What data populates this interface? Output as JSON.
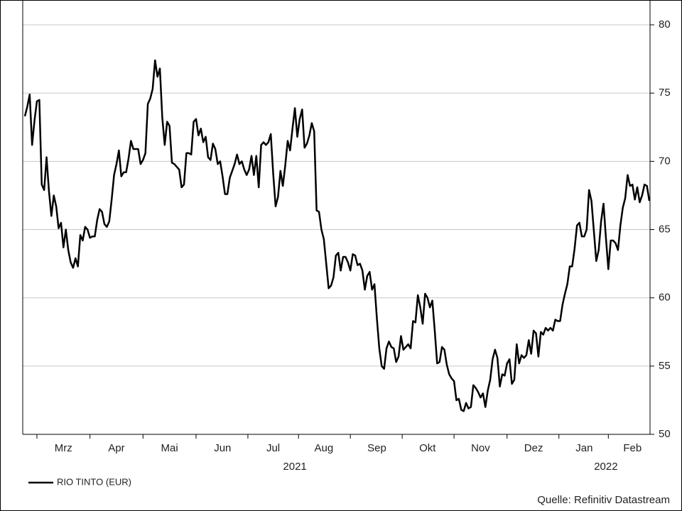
{
  "chart_data": {
    "type": "line",
    "categories": [
      null,
      null,
      null,
      null,
      null,
      null,
      null,
      null,
      null,
      null,
      null,
      null,
      null,
      null,
      null,
      null,
      "Mrz",
      null,
      null,
      null,
      null,
      null,
      null,
      null,
      null,
      null,
      null,
      null,
      null,
      null,
      null,
      null,
      null,
      null,
      null,
      null,
      null,
      null,
      "Apr",
      null,
      null,
      null,
      null,
      null,
      null,
      null,
      null,
      null,
      null,
      null,
      null,
      null,
      null,
      null,
      null,
      null,
      null,
      null,
      null,
      null,
      "Mai",
      null,
      null,
      null,
      null,
      null,
      null,
      null,
      null,
      null,
      null,
      null,
      null,
      null,
      null,
      null,
      null,
      null,
      null,
      null,
      null,
      null,
      "Jun",
      null,
      null,
      null,
      null,
      null,
      null,
      null,
      null,
      null,
      null,
      null,
      null,
      null,
      null,
      null,
      null,
      null,
      null,
      null,
      null,
      "Jul",
      null,
      null,
      null,
      null,
      null,
      null,
      null,
      null,
      null,
      null,
      null,
      null,
      null,
      null,
      null,
      null,
      null,
      null,
      null,
      null,
      "Aug",
      null,
      null,
      null,
      null,
      null,
      null,
      null,
      null,
      null,
      null,
      null,
      null,
      null,
      null,
      null,
      null,
      null,
      null,
      null,
      null,
      null,
      "Sep",
      null,
      null,
      null,
      null,
      null,
      null,
      null,
      null,
      null,
      null,
      null,
      null,
      null,
      null,
      null,
      null,
      null,
      null,
      null,
      null,
      "Okt",
      null,
      null,
      null,
      null,
      null,
      null,
      null,
      null,
      null,
      null,
      null,
      null,
      null,
      null,
      null,
      null,
      null,
      null,
      null,
      null,
      null,
      "Nov",
      null,
      null,
      null,
      null,
      null,
      null,
      null,
      null,
      null,
      null,
      null,
      null,
      null,
      null,
      null,
      null,
      null,
      null,
      null,
      null,
      null,
      "Dez",
      null,
      null,
      null,
      null,
      null,
      null,
      null,
      null,
      null,
      null,
      null,
      null,
      null,
      null,
      null,
      null,
      null,
      null,
      null,
      null,
      "Jan",
      null,
      null,
      null,
      null,
      null,
      null,
      null,
      null,
      null,
      null,
      null,
      null,
      null,
      null,
      null,
      null,
      null,
      null,
      null,
      "Feb",
      null,
      null,
      null,
      null,
      null,
      null,
      null
    ],
    "years": [
      {
        "label": "2021",
        "at": 112
      },
      {
        "label": "2022",
        "at": 241
      }
    ],
    "series": [
      {
        "name": "RIO TINTO (EUR)",
        "color": "#000000",
        "values": [
          73.3,
          74,
          74.9,
          71.2,
          73,
          74.4,
          74.5,
          68.3,
          67.9,
          70.3,
          67.8,
          66,
          67.5,
          66.7,
          65.1,
          65.5,
          63.7,
          65,
          63.5,
          62.6,
          62.2,
          62.9,
          62.3,
          64.6,
          64.2,
          65.2,
          65,
          64.4,
          64.5,
          64.5,
          65.7,
          66.5,
          66.3,
          65.4,
          65.2,
          65.6,
          67.2,
          69,
          69.8,
          70.8,
          68.9,
          69.2,
          69.2,
          70.2,
          71.5,
          70.9,
          70.9,
          70.9,
          69.8,
          70.1,
          70.6,
          74.2,
          74.6,
          75.3,
          77.4,
          76.2,
          76.8,
          73.2,
          71.2,
          72.9,
          72.6,
          69.9,
          69.8,
          69.6,
          69.4,
          68.1,
          68.3,
          70.6,
          70.6,
          70.5,
          72.9,
          73.1,
          71.9,
          72.4,
          71.4,
          71.8,
          70.3,
          70.1,
          71.3,
          70.9,
          69.8,
          70,
          68.9,
          67.6,
          67.6,
          68.8,
          69.3,
          69.8,
          70.5,
          69.8,
          70,
          69.4,
          69,
          69.4,
          70.4,
          69,
          70.4,
          68.1,
          71.2,
          71.4,
          71.2,
          71.4,
          72,
          69.1,
          66.7,
          67.4,
          69.3,
          68.2,
          69.7,
          71.5,
          70.8,
          72.4,
          73.9,
          71.8,
          73.1,
          73.8,
          71,
          71.3,
          71.9,
          72.8,
          72.2,
          66.4,
          66.3,
          65,
          64.3,
          62.5,
          60.7,
          60.9,
          61.5,
          63.1,
          63.3,
          62,
          63,
          63,
          62.6,
          62,
          63.2,
          63.1,
          62.4,
          62.5,
          62,
          60.6,
          61.6,
          61.9,
          60.6,
          61,
          58.5,
          56.3,
          55,
          54.8,
          56.3,
          56.8,
          56.4,
          56.3,
          55.3,
          55.7,
          57.2,
          56.2,
          56.4,
          56.6,
          56.3,
          58.3,
          58.2,
          60.2,
          59.3,
          58.1,
          60.3,
          60,
          59.3,
          59.8,
          57.6,
          55.2,
          55.3,
          56.4,
          56.2,
          55.1,
          54.4,
          54.1,
          53.9,
          52.5,
          52.6,
          51.8,
          51.7,
          52.3,
          51.9,
          52,
          53.6,
          53.4,
          53.1,
          52.7,
          53,
          52,
          53.2,
          54,
          55.5,
          56.2,
          55.6,
          53.5,
          54.4,
          54.3,
          55.2,
          55.5,
          53.7,
          54,
          56.6,
          55.2,
          55.8,
          55.6,
          55.8,
          56.9,
          55.9,
          57.6,
          57.4,
          55.7,
          57.5,
          57.3,
          57.8,
          57.6,
          57.8,
          57.6,
          58.4,
          58.3,
          58.3,
          59.5,
          60.3,
          61,
          62.3,
          62.3,
          63.6,
          65.3,
          65.5,
          64.5,
          64.5,
          65,
          67.9,
          67.1,
          64.9,
          62.7,
          63.5,
          65.6,
          66.9,
          64.4,
          62.1,
          64.2,
          64.2,
          64,
          63.5,
          65.3,
          66.6,
          67.3,
          69,
          68.2,
          68.3,
          67.2,
          68.1,
          67,
          67.5,
          68.3,
          68.2,
          67.1
        ]
      }
    ],
    "ylim": [
      50,
      80
    ],
    "yticks": [
      50,
      55,
      60,
      65,
      70,
      75,
      80
    ],
    "grid": true,
    "legend": "bottom-left",
    "source": "Quelle: Refinitiv Datastream"
  }
}
